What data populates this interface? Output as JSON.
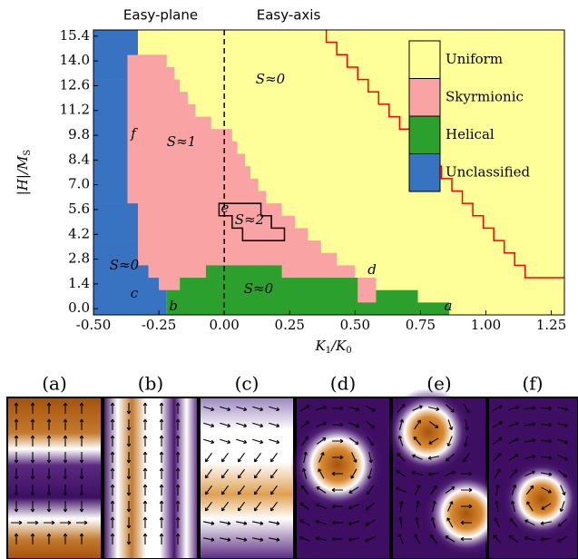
{
  "chart_data": {
    "type": "phase",
    "top_labels": [
      "Easy-plane",
      "Easy-axis"
    ],
    "xlabel": [
      {
        "text": "K"
      },
      {
        "text": "1",
        "sub": true
      },
      {
        "text": "/K"
      },
      {
        "text": "0",
        "sub": true
      }
    ],
    "ylabel": [
      {
        "text": "|H|/M"
      },
      {
        "text": "S",
        "sub": true
      }
    ],
    "xlim": [
      -0.5,
      1.3
    ],
    "ylim": [
      -0.35,
      15.75
    ],
    "xticks": [
      {
        "value": -0.5,
        "label": "-0.50"
      },
      {
        "value": -0.25,
        "label": "-0.25"
      },
      {
        "value": 0,
        "label": "0.00"
      },
      {
        "value": 0.25,
        "label": "0.25"
      },
      {
        "value": 0.5,
        "label": "0.50"
      },
      {
        "value": 0.75,
        "label": "0.75"
      },
      {
        "value": 1,
        "label": "1.00"
      },
      {
        "value": 1.25,
        "label": "1.25"
      }
    ],
    "yticks": [
      {
        "value": 0,
        "label": "0.0"
      },
      1.4,
      2.8,
      4.2,
      5.6,
      {
        "value": 7,
        "label": "7.0"
      },
      8.4,
      9.8,
      11.2,
      12.6,
      {
        "value": 14,
        "label": "14.0"
      },
      15.4
    ],
    "y": [
      0,
      0.7,
      1.4,
      2.1,
      2.8,
      3.5,
      4.2,
      4.9,
      5.6,
      6.3,
      7,
      7.7,
      8.4,
      9.1,
      9.8,
      10.5,
      11.2,
      11.9,
      12.6,
      13.3,
      14,
      14.7,
      15.4
    ],
    "series": [
      {
        "name": "Uniform",
        "color": "#ffff99",
        "background": true
      },
      {
        "name": "Skyrmionic",
        "color": "#f9a3a5",
        "intervals": [
          [],
          [
            [
              0.51,
              0.58
            ]
          ],
          [
            [
              -0.25,
              -0.17
            ],
            [
              0.51,
              0.58
            ]
          ],
          [
            [
              -0.29,
              -0.07
            ],
            [
              0.22,
              0.5
            ]
          ],
          [
            [
              -0.33,
              0.43
            ]
          ],
          [
            [
              -0.33,
              0.37
            ]
          ],
          [
            [
              -0.33,
              0.32
            ]
          ],
          [
            [
              -0.33,
              0.27
            ]
          ],
          [
            [
              -0.33,
              0.22
            ]
          ],
          [
            [
              -0.37,
              0.16
            ]
          ],
          [
            [
              -0.37,
              0.13
            ]
          ],
          [
            [
              -0.37,
              0.1
            ]
          ],
          [
            [
              -0.37,
              0.08
            ]
          ],
          [
            [
              -0.37,
              0.05
            ]
          ],
          [
            [
              -0.37,
              0.03
            ]
          ],
          [
            [
              -0.37,
              -0.05
            ]
          ],
          [
            [
              -0.37,
              -0.11
            ]
          ],
          [
            [
              -0.37,
              -0.14
            ]
          ],
          [
            [
              -0.37,
              -0.17
            ]
          ],
          [
            [
              -0.37,
              -0.19
            ]
          ],
          [
            [
              -0.37,
              -0.22
            ]
          ],
          [],
          []
        ]
      },
      {
        "name": "Helical",
        "color": "#2ca02c",
        "intervals": [
          [
            [
              -0.22,
              0.86
            ]
          ],
          [
            [
              -0.22,
              0.51
            ],
            [
              0.58,
              0.74
            ]
          ],
          [
            [
              -0.17,
              0.51
            ]
          ],
          [
            [
              -0.07,
              0.22
            ]
          ],
          [],
          [],
          [],
          [],
          [],
          [],
          [],
          [],
          [],
          [],
          [],
          [],
          [],
          [],
          [],
          [],
          [],
          [],
          []
        ]
      },
      {
        "name": "Unclassified",
        "color": "#3873c2",
        "intervals": [
          [
            [
              -0.5,
              -0.22
            ]
          ],
          [
            [
              -0.5,
              -0.22
            ]
          ],
          [
            [
              -0.5,
              -0.25
            ]
          ],
          [
            [
              -0.5,
              -0.29
            ]
          ],
          [
            [
              -0.5,
              -0.33
            ]
          ],
          [
            [
              -0.5,
              -0.33
            ]
          ],
          [
            [
              -0.5,
              -0.33
            ]
          ],
          [
            [
              -0.5,
              -0.33
            ]
          ],
          [
            [
              -0.5,
              -0.33
            ]
          ],
          [
            [
              -0.5,
              -0.37
            ]
          ],
          [
            [
              -0.5,
              -0.37
            ]
          ],
          [
            [
              -0.5,
              -0.37
            ]
          ],
          [
            [
              -0.5,
              -0.37
            ]
          ],
          [
            [
              -0.5,
              -0.37
            ]
          ],
          [
            [
              -0.5,
              -0.37
            ]
          ],
          [
            [
              -0.5,
              -0.37
            ]
          ],
          [
            [
              -0.5,
              -0.37
            ]
          ],
          [
            [
              -0.5,
              -0.37
            ]
          ],
          [
            [
              -0.5,
              -0.37
            ]
          ],
          [
            [
              -0.5,
              -0.37
            ]
          ],
          [
            [
              -0.5,
              -0.37
            ]
          ],
          [
            [
              -0.5,
              -0.33
            ]
          ],
          [
            [
              -0.5,
              -0.33
            ]
          ]
        ]
      }
    ],
    "divider_x": 0,
    "boundary": {
      "color": "#ff0000",
      "x": [
        0.39,
        0.39,
        0.43,
        0.43,
        0.47,
        0.47,
        0.51,
        0.51,
        0.55,
        0.55,
        0.59,
        0.59,
        0.63,
        0.63,
        0.67,
        0.67,
        0.71,
        0.71,
        0.75,
        0.75,
        0.79,
        0.79,
        0.83,
        0.83,
        0.87,
        0.87,
        0.91,
        0.91,
        0.95,
        0.95,
        0.99,
        0.99,
        1.03,
        1.03,
        1.07,
        1.07,
        1.11,
        1.11,
        1.15,
        1.15,
        1.19,
        1.3
      ],
      "y": [
        15.75,
        15.05,
        15.05,
        14.35,
        14.35,
        13.65,
        13.65,
        12.95,
        12.95,
        12.25,
        12.25,
        11.55,
        11.55,
        10.85,
        10.85,
        10.15,
        10.15,
        9.45,
        9.45,
        8.75,
        8.75,
        8.05,
        8.05,
        7.35,
        7.35,
        6.65,
        6.65,
        5.95,
        5.95,
        5.25,
        5.25,
        4.55,
        4.55,
        3.85,
        3.85,
        3.15,
        3.15,
        2.45,
        2.45,
        1.75,
        1.75,
        1.75
      ]
    },
    "outline": {
      "x": [
        -0.02,
        0.14,
        0.14,
        0.18,
        0.18,
        0.23,
        0.23,
        0.07,
        0.07,
        0.03,
        0.03,
        -0.02
      ],
      "y": [
        5.95,
        5.95,
        5.25,
        5.25,
        4.55,
        4.55,
        3.85,
        3.85,
        4.55,
        4.55,
        5.25,
        5.25
      ]
    },
    "annotations": [
      "S≈0",
      "S≈1",
      "S≈2",
      "S≈0",
      "S≈0",
      "a",
      "b",
      "c",
      "d",
      "e",
      "f"
    ],
    "panels": [
      "(a)",
      "(b)",
      "(c)",
      "(d)",
      "(e)",
      "(f)"
    ]
  }
}
